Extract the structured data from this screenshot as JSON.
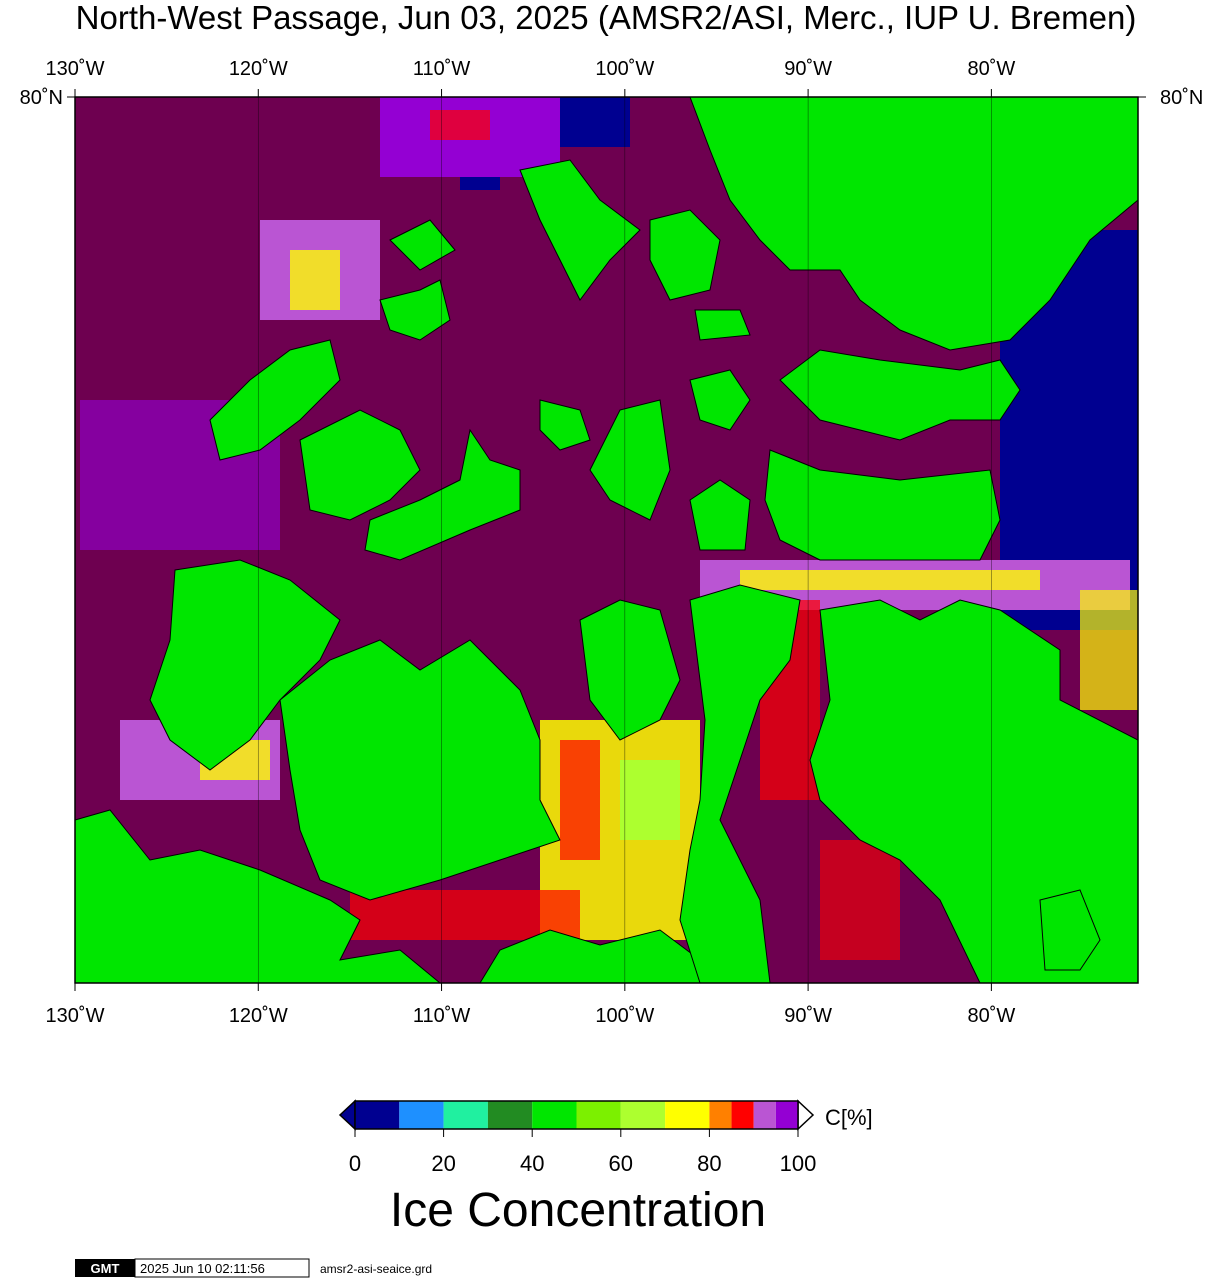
{
  "title": "North-West Passage, Jun 03, 2025 (AMSR2/ASI, Merc., IUP U. Bremen)",
  "map": {
    "xlim": [
      -130,
      -72
    ],
    "xticks": [
      {
        "value": -130,
        "label": "130˚W"
      },
      {
        "value": -120,
        "label": "120˚W"
      },
      {
        "value": -110,
        "label": "110˚W"
      },
      {
        "value": -100,
        "label": "100˚W"
      },
      {
        "value": -90,
        "label": "90˚W"
      },
      {
        "value": -80,
        "label": "80˚W"
      }
    ],
    "ylim": [
      67.5,
      80
    ],
    "yticks": [
      {
        "value": 80,
        "label": "80˚N"
      }
    ]
  },
  "colorbar": {
    "title": "Ice Concentration",
    "unit": "C[%]",
    "range": [
      0,
      100
    ],
    "bounds": [
      0,
      10,
      20,
      30,
      40,
      50,
      60,
      70,
      80,
      85,
      90,
      95,
      100
    ],
    "colors": [
      "#000090",
      "#1e90ff",
      "#20f0a0",
      "#228b22",
      "#00e600",
      "#7cf000",
      "#adff2f",
      "#ffff00",
      "#ff8000",
      "#ff0000",
      "#ba55d3",
      "#9400d3"
    ],
    "ticks": [
      0,
      20,
      40,
      60,
      80,
      100
    ]
  },
  "footer": {
    "logo": "GMT",
    "timestamp": "2025 Jun 10 02:11:56",
    "file": "amsr2-asi-seaice.grd"
  }
}
